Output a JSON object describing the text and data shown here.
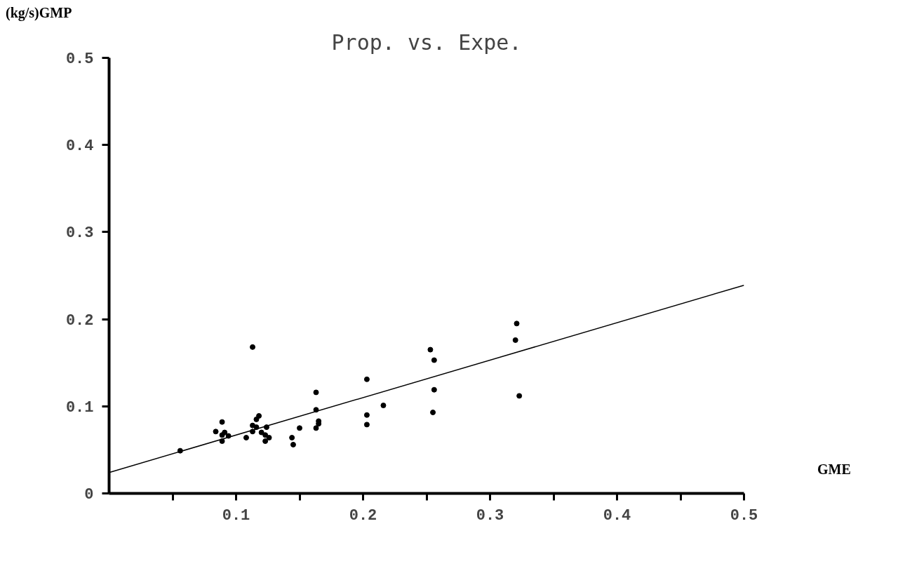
{
  "chart_data": {
    "type": "scatter",
    "title": "Prop. vs. Expe.",
    "xlabel": "GME",
    "ylabel": "(kg/s)GMP",
    "xlim": [
      0,
      0.5
    ],
    "ylim": [
      0,
      0.5
    ],
    "xticks": [
      {
        "value": 0.05,
        "label": null
      },
      0.1,
      {
        "value": 0.15,
        "label": null
      },
      0.2,
      {
        "value": 0.25,
        "label": null
      },
      0.3,
      {
        "value": 0.35,
        "label": null
      },
      0.4,
      {
        "value": 0.45,
        "label": null
      },
      0.5
    ],
    "yticks": [
      0,
      0.1,
      0.2,
      0.3,
      0.4,
      0.5
    ],
    "grid": false,
    "series": [
      {
        "marker": "circle",
        "color": "#000000",
        "x": [
          0.113,
          0.056,
          0.089,
          0.084,
          0.089,
          0.091,
          0.094,
          0.089,
          0.108,
          0.113,
          0.113,
          0.116,
          0.118,
          0.116,
          0.12,
          0.123,
          0.126,
          0.123,
          0.124,
          0.144,
          0.145,
          0.15,
          0.163,
          0.163,
          0.165,
          0.165,
          0.163,
          0.253,
          0.256,
          0.203,
          0.256,
          0.216,
          0.323,
          0.255,
          0.203,
          0.203,
          0.321,
          0.32
        ],
        "values": [
          0.168,
          0.049,
          0.082,
          0.071,
          0.067,
          0.07,
          0.066,
          0.06,
          0.064,
          0.071,
          0.078,
          0.085,
          0.089,
          0.076,
          0.07,
          0.067,
          0.064,
          0.06,
          0.076,
          0.064,
          0.056,
          0.075,
          0.116,
          0.096,
          0.083,
          0.08,
          0.075,
          0.165,
          0.153,
          0.131,
          0.119,
          0.101,
          0.112,
          0.093,
          0.09,
          0.079,
          0.195,
          0.176
        ]
      },
      {
        "type": "line",
        "color": "#000000",
        "x": [
          0,
          0.5
        ],
        "values": [
          0.024,
          0.239
        ]
      }
    ]
  }
}
